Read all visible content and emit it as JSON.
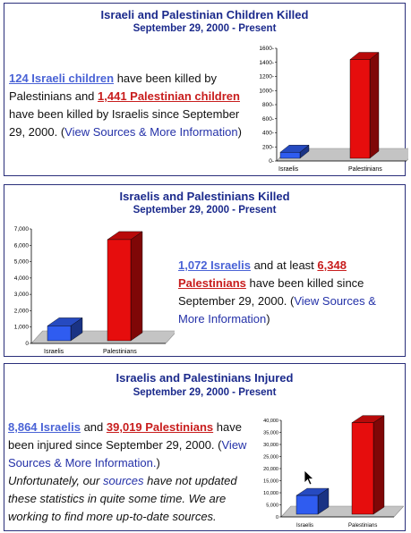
{
  "panels": [
    {
      "title": "Israeli and Palestinian Children Killed",
      "subtitle": "September 29, 2000 - Present",
      "link1": "124 Israeli children",
      "mid1": " have been killed by Palestinians and ",
      "link2": "1,441 Palestinian children",
      "mid2": " have been killed by Israelis since September 29, 2000. (",
      "sources": "View Sources & More Information",
      "end": ")"
    },
    {
      "title": "Israelis and Palestinians Killed",
      "subtitle": "September 29, 2000 - Present",
      "link1": "1,072 Israelis",
      "mid1": " and at least ",
      "link2": "6,348 Palestinians",
      "mid2": " have been killed since September 29, 2000. (",
      "sources": "View Sources & More Information",
      "end": ")"
    },
    {
      "title": "Israelis and Palestinians Injured",
      "subtitle": "September 29, 2000 - Present",
      "link1": "8,864 Israelis",
      "mid1": " and ",
      "link2": "39,019 Palestinians",
      "mid2": " have been injured since September 29, 2000. (",
      "sources": "View Sources & More Information.",
      "end": ")",
      "note_a": "Unfortunately, our ",
      "note_link": "sources",
      "note_b": " have not updated these statistics in quite some time. We are working to find more up-to-date sources."
    }
  ],
  "colors": {
    "israelis": "#2f5cf0",
    "palestinians": "#e60d0d",
    "title": "#1b2a8c"
  },
  "chart_data": [
    {
      "type": "bar",
      "categories": [
        "Israelis",
        "Palestinians"
      ],
      "values": [
        124,
        1441
      ],
      "ylim": [
        0,
        1600
      ],
      "ticks": [
        0,
        200,
        400,
        600,
        800,
        1000,
        1200,
        1400,
        1600
      ],
      "tick_labels": [
        "0-",
        "200-",
        "400-",
        "600-",
        "800-",
        "1000-",
        "1200-",
        "1400-",
        "1600-"
      ]
    },
    {
      "type": "bar",
      "categories": [
        "Israelis",
        "Palestinians"
      ],
      "values": [
        1072,
        6348
      ],
      "ylim": [
        0,
        7000
      ],
      "ticks": [
        0,
        1000,
        2000,
        3000,
        4000,
        5000,
        6000,
        7000
      ],
      "tick_labels": [
        "0",
        "1,000",
        "2,000",
        "3,000",
        "4,000",
        "5,000",
        "6,000",
        "7,000"
      ]
    },
    {
      "type": "bar",
      "categories": [
        "Israelis",
        "Palestinians"
      ],
      "values": [
        8864,
        39019
      ],
      "ylim": [
        0,
        40000
      ],
      "ticks": [
        0,
        5000,
        10000,
        15000,
        20000,
        25000,
        30000,
        35000,
        40000
      ],
      "tick_labels": [
        "0",
        "5,000",
        "10,000",
        "15,000",
        "20,000",
        "25,000",
        "30,000",
        "35,000",
        "40,000"
      ]
    }
  ]
}
